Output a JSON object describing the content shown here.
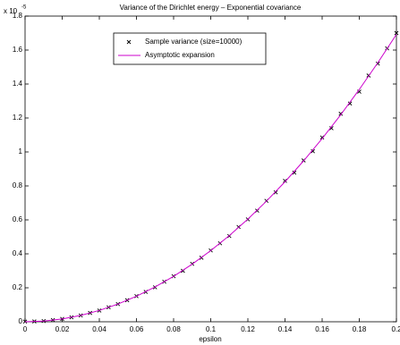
{
  "chart_data": {
    "type": "scatter-line",
    "title": "Variance of the Dirichlet energy – Exponential covariance",
    "x_label": "epsilon",
    "y_scale_base": "x 10",
    "y_scale_exponent": "-5",
    "xlim": [
      0,
      0.2
    ],
    "ylim": [
      0,
      1.8
    ],
    "xticks": [
      0,
      0.02,
      0.04,
      0.06,
      0.08,
      0.1,
      0.12,
      0.14,
      0.16,
      0.18,
      0.2
    ],
    "yticks": [
      0,
      0.2,
      0.4,
      0.6,
      0.8,
      1,
      1.2,
      1.4,
      1.6,
      1.8
    ],
    "legend_position": "top",
    "series": [
      {
        "name": "Sample variance (size=10000)",
        "color": "#000000",
        "marker": "x",
        "x": [
          0,
          0.005,
          0.01,
          0.015,
          0.02,
          0.025,
          0.03,
          0.035,
          0.04,
          0.045,
          0.05,
          0.055,
          0.06,
          0.065,
          0.07,
          0.075,
          0.08,
          0.085,
          0.09,
          0.095,
          0.1,
          0.105,
          0.11,
          0.115,
          0.12,
          0.125,
          0.13,
          0.135,
          0.14,
          0.145,
          0.15,
          0.155,
          0.16,
          0.165,
          0.17,
          0.175,
          0.18,
          0.185,
          0.19,
          0.195,
          0.2
        ],
        "values": [
          0.001,
          0.002,
          0.004,
          0.01,
          0.017,
          0.026,
          0.037,
          0.052,
          0.066,
          0.085,
          0.104,
          0.127,
          0.151,
          0.176,
          0.203,
          0.236,
          0.268,
          0.3,
          0.341,
          0.377,
          0.42,
          0.462,
          0.505,
          0.558,
          0.603,
          0.654,
          0.712,
          0.762,
          0.83,
          0.878,
          0.95,
          1.004,
          1.085,
          1.14,
          1.225,
          1.285,
          1.355,
          1.45,
          1.52,
          1.61,
          1.7
        ]
      },
      {
        "name": "Asymptotic expansion",
        "color": "#cc00cc",
        "marker": "line",
        "x": [
          0,
          0.01,
          0.02,
          0.03,
          0.04,
          0.05,
          0.06,
          0.07,
          0.08,
          0.09,
          0.1,
          0.11,
          0.12,
          0.13,
          0.14,
          0.15,
          0.16,
          0.17,
          0.18,
          0.19,
          0.2
        ],
        "values": [
          0,
          0.0042,
          0.0166,
          0.0375,
          0.0667,
          0.1043,
          0.1503,
          0.2047,
          0.2676,
          0.3391,
          0.419,
          0.5075,
          0.6045,
          0.7101,
          0.8244,
          0.9473,
          1.0788,
          1.219,
          1.3679,
          1.5256,
          1.692
        ]
      }
    ]
  }
}
